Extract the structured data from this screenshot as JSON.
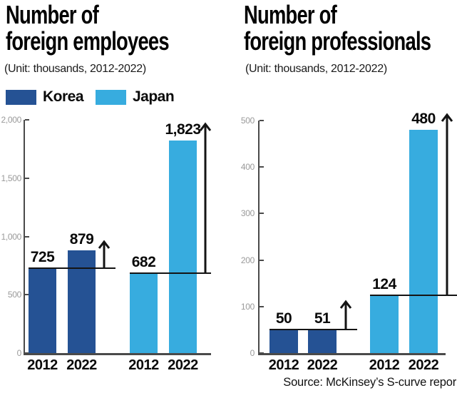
{
  "source": "Source: McKinsey’s S-curve repor",
  "colors": {
    "korea": "#255294",
    "japan": "#37ACDF",
    "axis": "#4a4a4a",
    "annotation": "#141414",
    "tick_label": "#9a9a9a",
    "background": "#ffffff"
  },
  "charts": [
    {
      "title_line1": "Number of",
      "title_line2": "foreign employees",
      "subtitle": "(Unit: thousands, 2012-2022)"
    },
    {
      "title_line1": "Number of",
      "title_line2": "foreign professionals",
      "subtitle": "(Unit: thousands, 2012-2022)"
    }
  ],
  "chart_data": [
    {
      "type": "bar",
      "title": "Number of foreign employees",
      "subtitle": "(Unit: thousands, 2012-2022)",
      "unit": "thousands",
      "categories": [
        "2012",
        "2022"
      ],
      "series": [
        {
          "name": "Korea",
          "values": [
            725,
            879
          ],
          "labels": [
            "725",
            "879"
          ],
          "color": "#255294"
        },
        {
          "name": "Japan",
          "values": [
            682,
            1823
          ],
          "labels": [
            "682",
            "1,823"
          ],
          "color": "#37ACDF"
        }
      ],
      "ylim": [
        0,
        2000
      ],
      "yticks": [
        "2,000",
        "1,500",
        "1,000",
        "500",
        "0"
      ],
      "grid": false,
      "legend_position": "top-left",
      "annotation": "horizontal line at 2012 level with upward arrow marking growth to 2022"
    },
    {
      "type": "bar",
      "title": "Number of foreign professionals",
      "subtitle": "(Unit: thousands, 2012-2022)",
      "unit": "thousands",
      "categories": [
        "2012",
        "2022"
      ],
      "series": [
        {
          "name": "Korea",
          "values": [
            50,
            51
          ],
          "labels": [
            "50",
            "51"
          ],
          "color": "#255294"
        },
        {
          "name": "Japan",
          "values": [
            124,
            480
          ],
          "labels": [
            "124",
            "480"
          ],
          "color": "#37ACDF"
        }
      ],
      "ylim": [
        0,
        500
      ],
      "yticks": [
        "500",
        "400",
        "300",
        "200",
        "100",
        "0"
      ],
      "grid": false,
      "legend_position": "none",
      "annotation": "horizontal line at 2012 level with upward arrow marking growth to 2022"
    }
  ]
}
